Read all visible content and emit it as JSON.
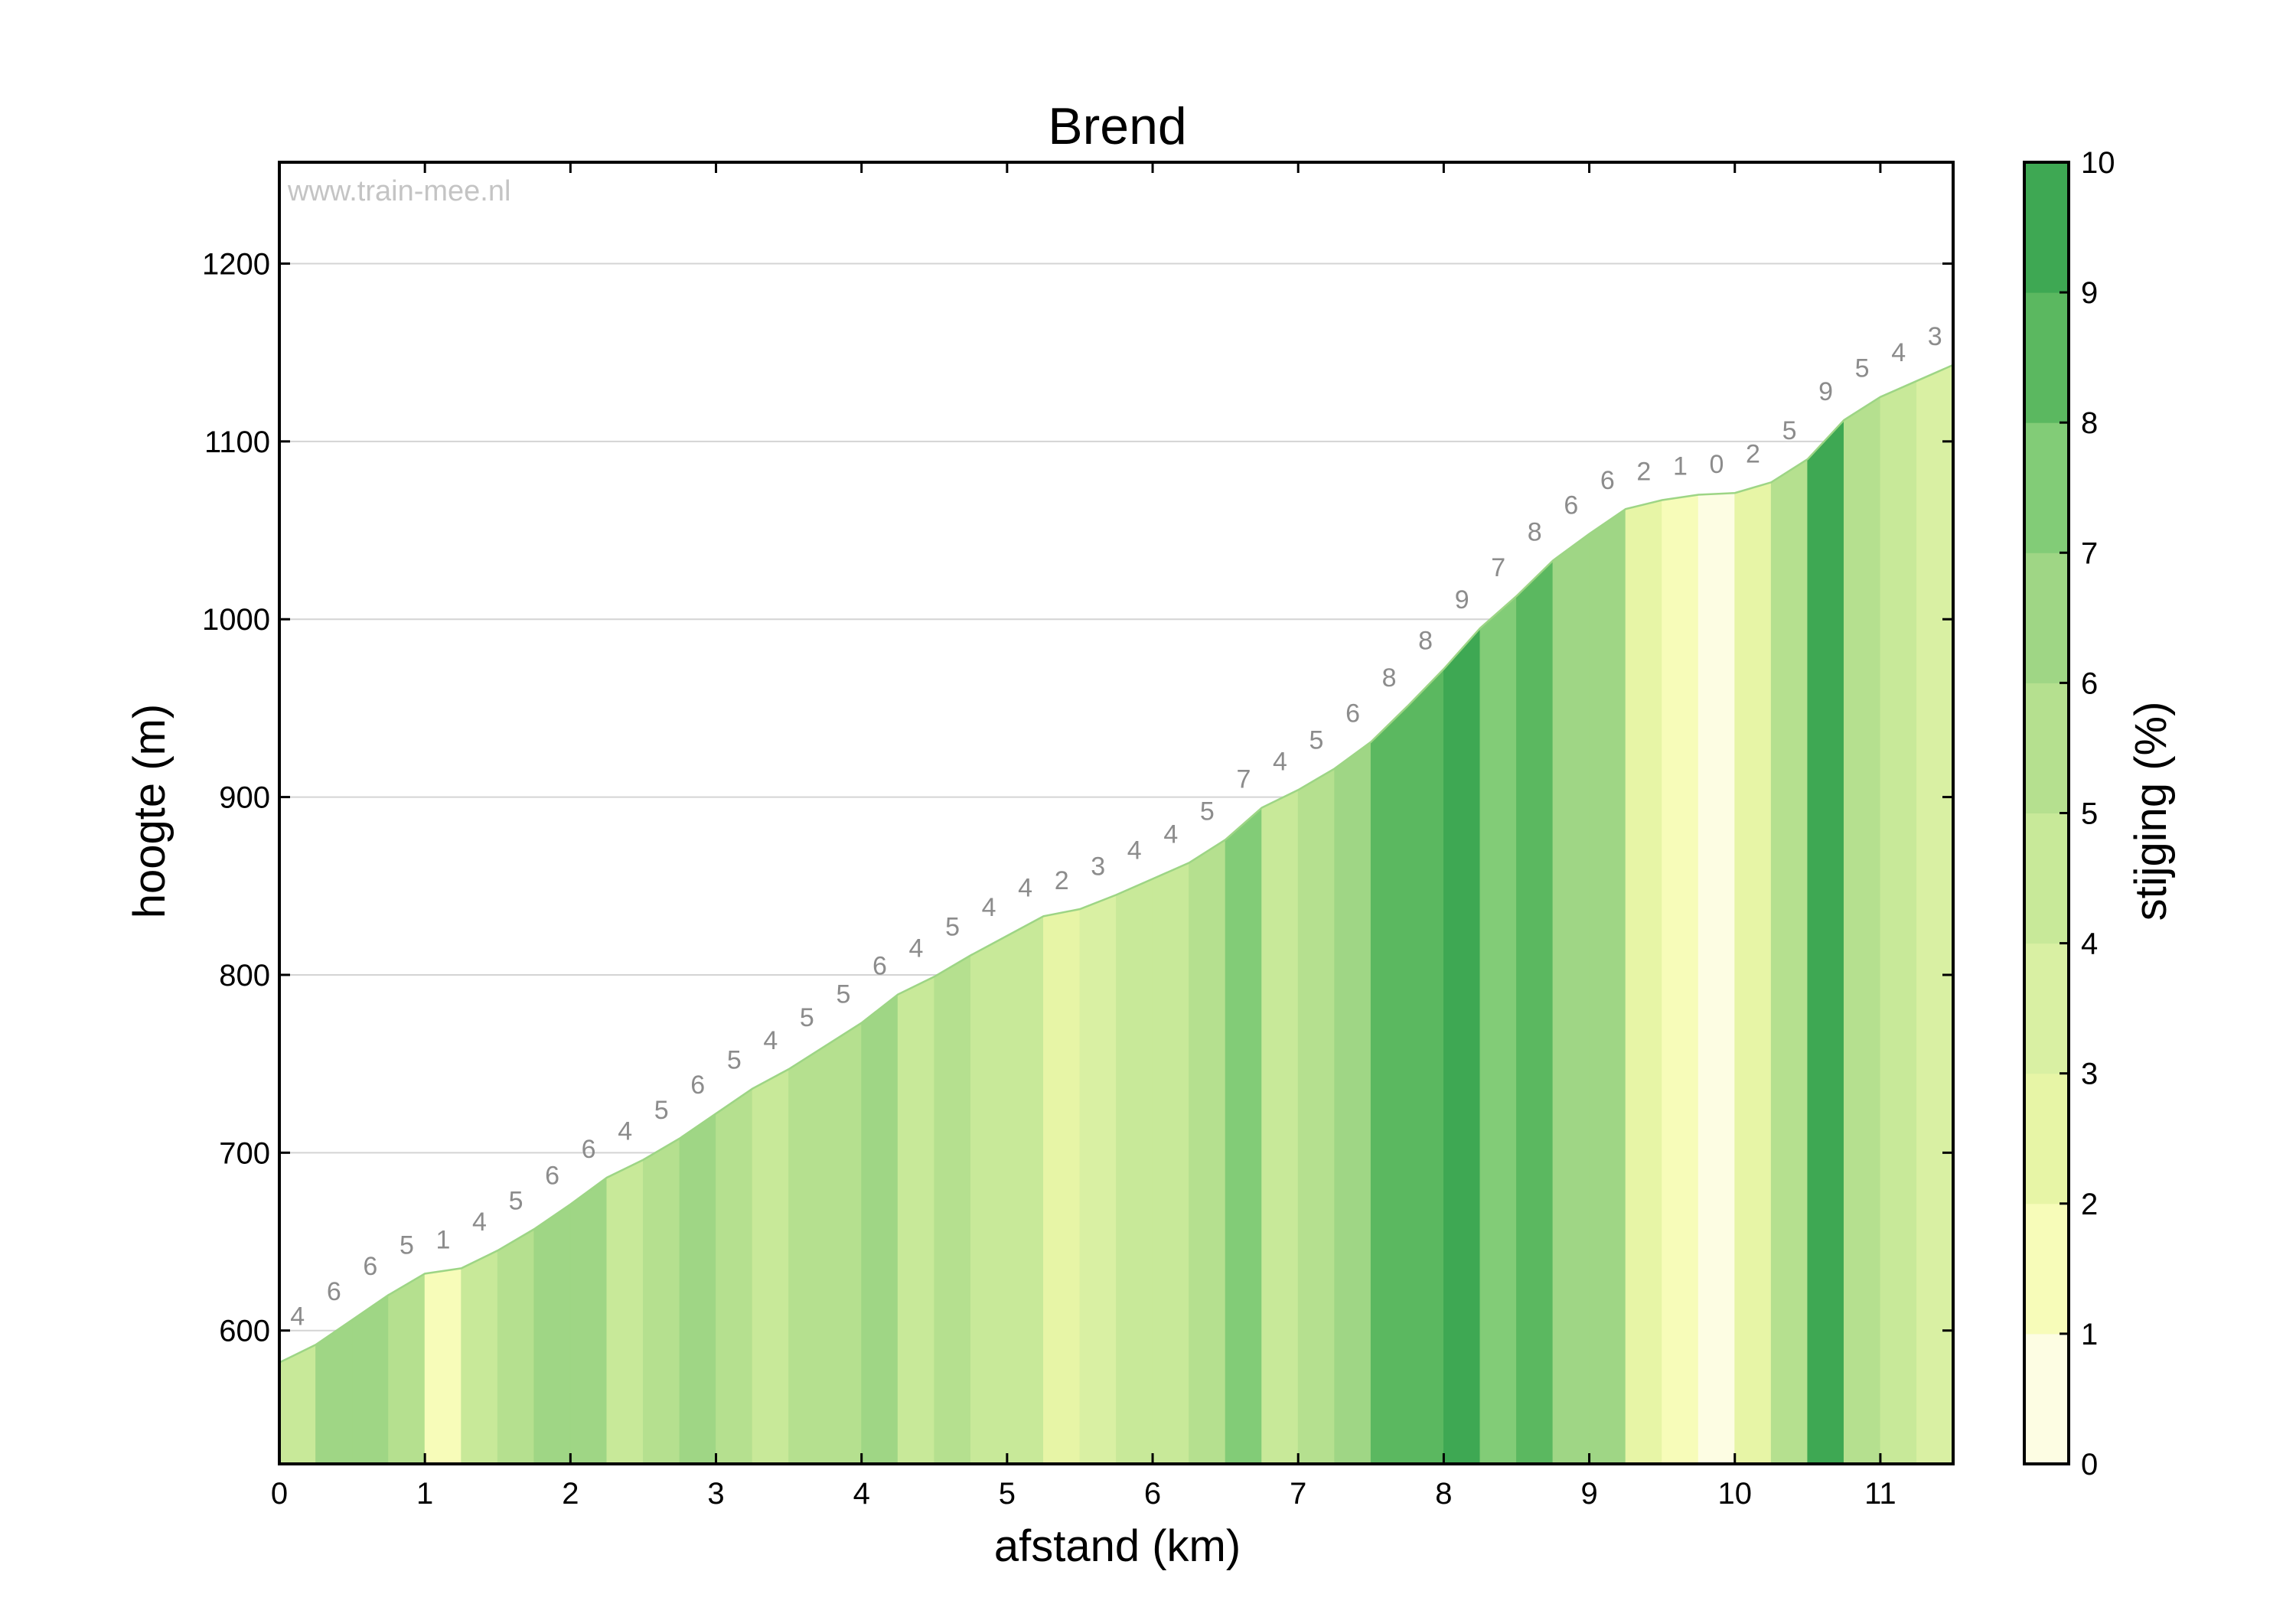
{
  "chart_data": {
    "type": "area",
    "title": "Brend",
    "xlabel": "afstand (km)",
    "ylabel": "hoogte (m)",
    "xlim": [
      0,
      11.5
    ],
    "ylim": [
      525,
      1257
    ],
    "x_ticks": [
      "0",
      "1",
      "2",
      "3",
      "4",
      "5",
      "6",
      "7",
      "8",
      "9",
      "10",
      "11"
    ],
    "y_ticks": [
      "600",
      "700",
      "800",
      "900",
      "1000",
      "1100",
      "1200"
    ],
    "grid": "horizontal",
    "watermark": "www.train-mee.nl",
    "colorbar": {
      "label": "stijging (%)",
      "range": [
        0,
        10
      ],
      "ticks": [
        "0",
        "1",
        "2",
        "3",
        "4",
        "5",
        "6",
        "7",
        "8",
        "9",
        "10"
      ],
      "colors": [
        "#fdfde3",
        "#f7fcb9",
        "#e7f5a6",
        "#d9f0a3",
        "#c8e999",
        "#b5e08f",
        "#9fd685",
        "#82cc77",
        "#5bb860",
        "#3ea853"
      ]
    },
    "segments": [
      {
        "x0": 0.0,
        "x1": 0.25,
        "grade": "4",
        "y0": 582,
        "y1": 592
      },
      {
        "x0": 0.25,
        "x1": 0.5,
        "grade": "6",
        "y0": 592,
        "y1": 606
      },
      {
        "x0": 0.5,
        "x1": 0.75,
        "grade": "6",
        "y0": 606,
        "y1": 620
      },
      {
        "x0": 0.75,
        "x1": 1.0,
        "grade": "5",
        "y0": 620,
        "y1": 632
      },
      {
        "x0": 1.0,
        "x1": 1.25,
        "grade": "1",
        "y0": 632,
        "y1": 635
      },
      {
        "x0": 1.25,
        "x1": 1.5,
        "grade": "4",
        "y0": 635,
        "y1": 645
      },
      {
        "x0": 1.5,
        "x1": 1.75,
        "grade": "5",
        "y0": 645,
        "y1": 657
      },
      {
        "x0": 1.75,
        "x1": 2.0,
        "grade": "6",
        "y0": 657,
        "y1": 671
      },
      {
        "x0": 2.0,
        "x1": 2.25,
        "grade": "6",
        "y0": 671,
        "y1": 686
      },
      {
        "x0": 2.25,
        "x1": 2.5,
        "grade": "4",
        "y0": 686,
        "y1": 696
      },
      {
        "x0": 2.5,
        "x1": 2.75,
        "grade": "5",
        "y0": 696,
        "y1": 708
      },
      {
        "x0": 2.75,
        "x1": 3.0,
        "grade": "6",
        "y0": 708,
        "y1": 722
      },
      {
        "x0": 3.0,
        "x1": 3.25,
        "grade": "5",
        "y0": 722,
        "y1": 736
      },
      {
        "x0": 3.25,
        "x1": 3.5,
        "grade": "4",
        "y0": 736,
        "y1": 747
      },
      {
        "x0": 3.5,
        "x1": 3.75,
        "grade": "5",
        "y0": 747,
        "y1": 760
      },
      {
        "x0": 3.75,
        "x1": 4.0,
        "grade": "5",
        "y0": 760,
        "y1": 773
      },
      {
        "x0": 4.0,
        "x1": 4.25,
        "grade": "6",
        "y0": 773,
        "y1": 789
      },
      {
        "x0": 4.25,
        "x1": 4.5,
        "grade": "4",
        "y0": 789,
        "y1": 799
      },
      {
        "x0": 4.5,
        "x1": 4.75,
        "grade": "5",
        "y0": 799,
        "y1": 811
      },
      {
        "x0": 4.75,
        "x1": 5.0,
        "grade": "4",
        "y0": 811,
        "y1": 822
      },
      {
        "x0": 5.0,
        "x1": 5.25,
        "grade": "4",
        "y0": 822,
        "y1": 833
      },
      {
        "x0": 5.25,
        "x1": 5.5,
        "grade": "2",
        "y0": 833,
        "y1": 837
      },
      {
        "x0": 5.5,
        "x1": 5.75,
        "grade": "3",
        "y0": 837,
        "y1": 845
      },
      {
        "x0": 5.75,
        "x1": 6.0,
        "grade": "4",
        "y0": 845,
        "y1": 854
      },
      {
        "x0": 6.0,
        "x1": 6.25,
        "grade": "4",
        "y0": 854,
        "y1": 863
      },
      {
        "x0": 6.25,
        "x1": 6.5,
        "grade": "5",
        "y0": 863,
        "y1": 876
      },
      {
        "x0": 6.5,
        "x1": 6.75,
        "grade": "7",
        "y0": 876,
        "y1": 894
      },
      {
        "x0": 6.75,
        "x1": 7.0,
        "grade": "4",
        "y0": 894,
        "y1": 904
      },
      {
        "x0": 7.0,
        "x1": 7.25,
        "grade": "5",
        "y0": 904,
        "y1": 916
      },
      {
        "x0": 7.25,
        "x1": 7.5,
        "grade": "6",
        "y0": 916,
        "y1": 931
      },
      {
        "x0": 7.5,
        "x1": 7.75,
        "grade": "8",
        "y0": 931,
        "y1": 951
      },
      {
        "x0": 7.75,
        "x1": 8.0,
        "grade": "8",
        "y0": 951,
        "y1": 972
      },
      {
        "x0": 8.0,
        "x1": 8.25,
        "grade": "9",
        "y0": 972,
        "y1": 995
      },
      {
        "x0": 8.25,
        "x1": 8.5,
        "grade": "7",
        "y0": 995,
        "y1": 1013
      },
      {
        "x0": 8.5,
        "x1": 8.75,
        "grade": "8",
        "y0": 1013,
        "y1": 1033
      },
      {
        "x0": 8.75,
        "x1": 9.0,
        "grade": "6",
        "y0": 1033,
        "y1": 1048
      },
      {
        "x0": 9.0,
        "x1": 9.25,
        "grade": "6",
        "y0": 1048,
        "y1": 1062
      },
      {
        "x0": 9.25,
        "x1": 9.5,
        "grade": "2",
        "y0": 1062,
        "y1": 1067
      },
      {
        "x0": 9.5,
        "x1": 9.75,
        "grade": "1",
        "y0": 1067,
        "y1": 1070
      },
      {
        "x0": 9.75,
        "x1": 10.0,
        "grade": "0",
        "y0": 1070,
        "y1": 1071
      },
      {
        "x0": 10.0,
        "x1": 10.25,
        "grade": "2",
        "y0": 1071,
        "y1": 1077
      },
      {
        "x0": 10.25,
        "x1": 10.5,
        "grade": "5",
        "y0": 1077,
        "y1": 1090
      },
      {
        "x0": 10.5,
        "x1": 10.75,
        "grade": "9",
        "y0": 1090,
        "y1": 1112
      },
      {
        "x0": 10.75,
        "x1": 11.0,
        "grade": "5",
        "y0": 1112,
        "y1": 1125
      },
      {
        "x0": 11.0,
        "x1": 11.25,
        "grade": "4",
        "y0": 1125,
        "y1": 1134
      },
      {
        "x0": 11.25,
        "x1": 11.5,
        "grade": "3",
        "y0": 1134,
        "y1": 1143
      }
    ]
  }
}
